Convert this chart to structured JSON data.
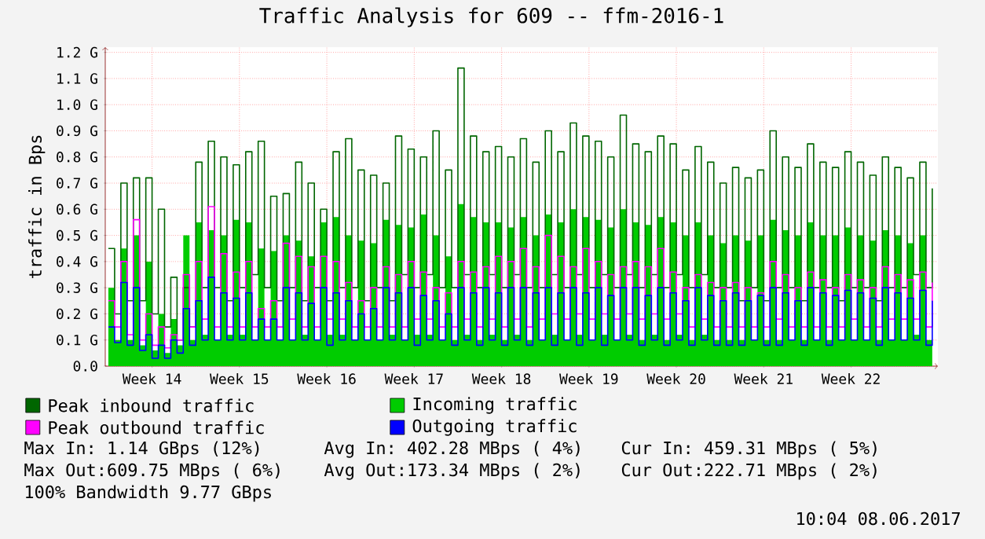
{
  "chart_data": {
    "type": "step",
    "title": "Traffic Analysis for 609 -- ffm-2016-1",
    "ylabel": "traffic in Bps",
    "categories": [
      null,
      null,
      null,
      null,
      null,
      null,
      null,
      "Week 14",
      null,
      null,
      null,
      null,
      null,
      null,
      null,
      null,
      null,
      null,
      null,
      null,
      null,
      "Week 15",
      null,
      null,
      null,
      null,
      null,
      null,
      null,
      null,
      null,
      null,
      null,
      null,
      null,
      "Week 16",
      null,
      null,
      null,
      null,
      null,
      null,
      null,
      null,
      null,
      null,
      null,
      null,
      null,
      "Week 17",
      null,
      null,
      null,
      null,
      null,
      null,
      null,
      null,
      null,
      null,
      null,
      null,
      null,
      "Week 18",
      null,
      null,
      null,
      null,
      null,
      null,
      null,
      null,
      null,
      null,
      null,
      null,
      null,
      "Week 19",
      null,
      null,
      null,
      null,
      null,
      null,
      null,
      null,
      null,
      null,
      null,
      null,
      null,
      "Week 20",
      null,
      null,
      null,
      null,
      null,
      null,
      null,
      null,
      null,
      null,
      null,
      null,
      null,
      "Week 21",
      null,
      null,
      null,
      null,
      null,
      null,
      null,
      null,
      null,
      null,
      null,
      null,
      null,
      "Week 22",
      null,
      null,
      null,
      null,
      null,
      null,
      null,
      null,
      null,
      null,
      null,
      null,
      null
    ],
    "series": [
      {
        "name": "Peak inbound traffic",
        "color": "#006600",
        "values": [
          0.45,
          0.2,
          0.7,
          0.25,
          0.72,
          0.25,
          0.72,
          0.2,
          0.6,
          0.15,
          0.34,
          0.1,
          0.3,
          0.15,
          0.78,
          0.3,
          0.86,
          0.3,
          0.8,
          0.25,
          0.77,
          0.3,
          0.82,
          0.35,
          0.86,
          0.3,
          0.65,
          0.25,
          0.66,
          0.3,
          0.78,
          0.25,
          0.7,
          0.3,
          0.6,
          0.25,
          0.82,
          0.3,
          0.87,
          0.3,
          0.75,
          0.25,
          0.73,
          0.3,
          0.7,
          0.25,
          0.88,
          0.35,
          0.83,
          0.3,
          0.8,
          0.35,
          0.9,
          0.3,
          0.75,
          0.3,
          1.14,
          0.35,
          0.88,
          0.3,
          0.82,
          0.35,
          0.84,
          0.3,
          0.8,
          0.35,
          0.87,
          0.3,
          0.78,
          0.3,
          0.9,
          0.35,
          0.82,
          0.3,
          0.93,
          0.35,
          0.88,
          0.3,
          0.86,
          0.35,
          0.8,
          0.3,
          0.96,
          0.35,
          0.85,
          0.3,
          0.82,
          0.35,
          0.88,
          0.3,
          0.85,
          0.35,
          0.75,
          0.3,
          0.84,
          0.35,
          0.78,
          0.3,
          0.7,
          0.3,
          0.76,
          0.25,
          0.72,
          0.3,
          0.75,
          0.25,
          0.9,
          0.3,
          0.8,
          0.3,
          0.76,
          0.25,
          0.85,
          0.3,
          0.78,
          0.3,
          0.76,
          0.25,
          0.82,
          0.3,
          0.78,
          0.3,
          0.73,
          0.25,
          0.8,
          0.3,
          0.76,
          0.3,
          0.72,
          0.35,
          0.78,
          0.3,
          0.68
        ]
      },
      {
        "name": "Incoming traffic",
        "type": "area",
        "color": "#00cc00",
        "values": [
          0.3,
          0.1,
          0.45,
          0.1,
          0.5,
          0.08,
          0.4,
          0.06,
          0.2,
          0.05,
          0.18,
          0.08,
          0.5,
          0.1,
          0.55,
          0.12,
          0.52,
          0.1,
          0.5,
          0.12,
          0.56,
          0.12,
          0.55,
          0.1,
          0.45,
          0.1,
          0.44,
          0.1,
          0.5,
          0.1,
          0.48,
          0.12,
          0.42,
          0.1,
          0.55,
          0.12,
          0.57,
          0.12,
          0.5,
          0.1,
          0.48,
          0.1,
          0.47,
          0.1,
          0.56,
          0.12,
          0.54,
          0.1,
          0.53,
          0.12,
          0.58,
          0.12,
          0.5,
          0.1,
          0.42,
          0.1,
          0.62,
          0.12,
          0.57,
          0.1,
          0.55,
          0.12,
          0.55,
          0.1,
          0.53,
          0.12,
          0.57,
          0.1,
          0.5,
          0.1,
          0.58,
          0.12,
          0.55,
          0.1,
          0.6,
          0.12,
          0.57,
          0.1,
          0.56,
          0.12,
          0.53,
          0.1,
          0.6,
          0.12,
          0.55,
          0.1,
          0.54,
          0.12,
          0.57,
          0.1,
          0.55,
          0.12,
          0.5,
          0.1,
          0.55,
          0.12,
          0.5,
          0.1,
          0.47,
          0.1,
          0.5,
          0.1,
          0.48,
          0.1,
          0.5,
          0.1,
          0.56,
          0.1,
          0.52,
          0.1,
          0.5,
          0.1,
          0.55,
          0.1,
          0.5,
          0.1,
          0.5,
          0.1,
          0.53,
          0.1,
          0.5,
          0.1,
          0.48,
          0.1,
          0.52,
          0.1,
          0.5,
          0.1,
          0.47,
          0.12,
          0.5,
          0.1,
          0.45
        ]
      },
      {
        "name": "Peak outbound traffic",
        "color": "#ff00ff",
        "values": [
          0.25,
          0.15,
          0.4,
          0.12,
          0.56,
          0.1,
          0.2,
          0.08,
          0.15,
          0.07,
          0.12,
          0.1,
          0.35,
          0.15,
          0.4,
          0.18,
          0.61,
          0.15,
          0.43,
          0.15,
          0.36,
          0.15,
          0.4,
          0.15,
          0.22,
          0.15,
          0.25,
          0.15,
          0.47,
          0.18,
          0.42,
          0.15,
          0.38,
          0.15,
          0.42,
          0.18,
          0.4,
          0.18,
          0.32,
          0.15,
          0.25,
          0.15,
          0.3,
          0.15,
          0.38,
          0.15,
          0.35,
          0.15,
          0.4,
          0.18,
          0.36,
          0.18,
          0.3,
          0.15,
          0.28,
          0.15,
          0.4,
          0.18,
          0.36,
          0.15,
          0.38,
          0.18,
          0.42,
          0.15,
          0.4,
          0.18,
          0.45,
          0.15,
          0.38,
          0.18,
          0.5,
          0.2,
          0.42,
          0.18,
          0.38,
          0.2,
          0.45,
          0.18,
          0.4,
          0.2,
          0.35,
          0.18,
          0.38,
          0.2,
          0.4,
          0.18,
          0.38,
          0.2,
          0.45,
          0.18,
          0.36,
          0.2,
          0.3,
          0.15,
          0.35,
          0.18,
          0.32,
          0.15,
          0.3,
          0.15,
          0.32,
          0.15,
          0.3,
          0.15,
          0.28,
          0.15,
          0.4,
          0.18,
          0.35,
          0.15,
          0.3,
          0.15,
          0.36,
          0.15,
          0.33,
          0.15,
          0.3,
          0.15,
          0.35,
          0.18,
          0.33,
          0.15,
          0.3,
          0.15,
          0.38,
          0.18,
          0.35,
          0.18,
          0.33,
          0.18,
          0.36,
          0.15,
          0.32
        ]
      },
      {
        "name": "Outgoing traffic",
        "color": "#0000ff",
        "values": [
          0.15,
          0.09,
          0.32,
          0.08,
          0.3,
          0.06,
          0.12,
          0.03,
          0.08,
          0.03,
          0.1,
          0.05,
          0.22,
          0.08,
          0.25,
          0.1,
          0.34,
          0.1,
          0.28,
          0.1,
          0.26,
          0.1,
          0.28,
          0.1,
          0.18,
          0.1,
          0.18,
          0.1,
          0.3,
          0.1,
          0.28,
          0.1,
          0.24,
          0.1,
          0.3,
          0.08,
          0.28,
          0.1,
          0.25,
          0.1,
          0.2,
          0.1,
          0.22,
          0.1,
          0.3,
          0.1,
          0.28,
          0.1,
          0.3,
          0.08,
          0.27,
          0.1,
          0.25,
          0.1,
          0.2,
          0.08,
          0.3,
          0.1,
          0.28,
          0.08,
          0.3,
          0.1,
          0.28,
          0.08,
          0.3,
          0.1,
          0.3,
          0.08,
          0.28,
          0.1,
          0.3,
          0.08,
          0.28,
          0.1,
          0.3,
          0.08,
          0.28,
          0.1,
          0.3,
          0.08,
          0.27,
          0.1,
          0.3,
          0.1,
          0.3,
          0.08,
          0.27,
          0.1,
          0.3,
          0.08,
          0.28,
          0.1,
          0.25,
          0.08,
          0.3,
          0.1,
          0.27,
          0.08,
          0.25,
          0.08,
          0.28,
          0.08,
          0.25,
          0.1,
          0.27,
          0.08,
          0.3,
          0.08,
          0.28,
          0.1,
          0.25,
          0.08,
          0.3,
          0.1,
          0.28,
          0.08,
          0.27,
          0.1,
          0.29,
          0.1,
          0.28,
          0.1,
          0.26,
          0.08,
          0.3,
          0.1,
          0.28,
          0.1,
          0.26,
          0.1,
          0.29,
          0.08,
          0.25
        ]
      }
    ],
    "ylim": [
      0,
      1.22
    ],
    "yticks": [
      {
        "value": 0,
        "label": "0.0"
      },
      {
        "value": 0.1,
        "label": "0.1 G"
      },
      {
        "value": 0.2,
        "label": "0.2 G"
      },
      {
        "value": 0.3,
        "label": "0.3 G"
      },
      {
        "value": 0.4,
        "label": "0.4 G"
      },
      {
        "value": 0.5,
        "label": "0.5 G"
      },
      {
        "value": 0.6,
        "label": "0.6 G"
      },
      {
        "value": 0.7,
        "label": "0.7 G"
      },
      {
        "value": 0.8,
        "label": "0.8 G"
      },
      {
        "value": 0.9,
        "label": "0.9 G"
      },
      {
        "value": 1.0,
        "label": "1.0 G"
      },
      {
        "value": 1.1,
        "label": "1.1 G"
      },
      {
        "value": 1.2,
        "label": "1.2 G"
      }
    ],
    "grid": true,
    "legend": "bottom",
    "annotations": [
      "Max In: 1.14 GBps (12%)",
      "Avg In: 402.28 MBps ( 4%)",
      "Cur In: 459.31 MBps ( 5%)",
      "Max Out:609.75 MBps ( 6%)",
      "Avg Out:173.34 MBps ( 2%)",
      "Cur Out:222.71 MBps ( 2%)",
      "100% Bandwidth 9.77 GBps",
      "10:04 08.06.2017"
    ]
  }
}
